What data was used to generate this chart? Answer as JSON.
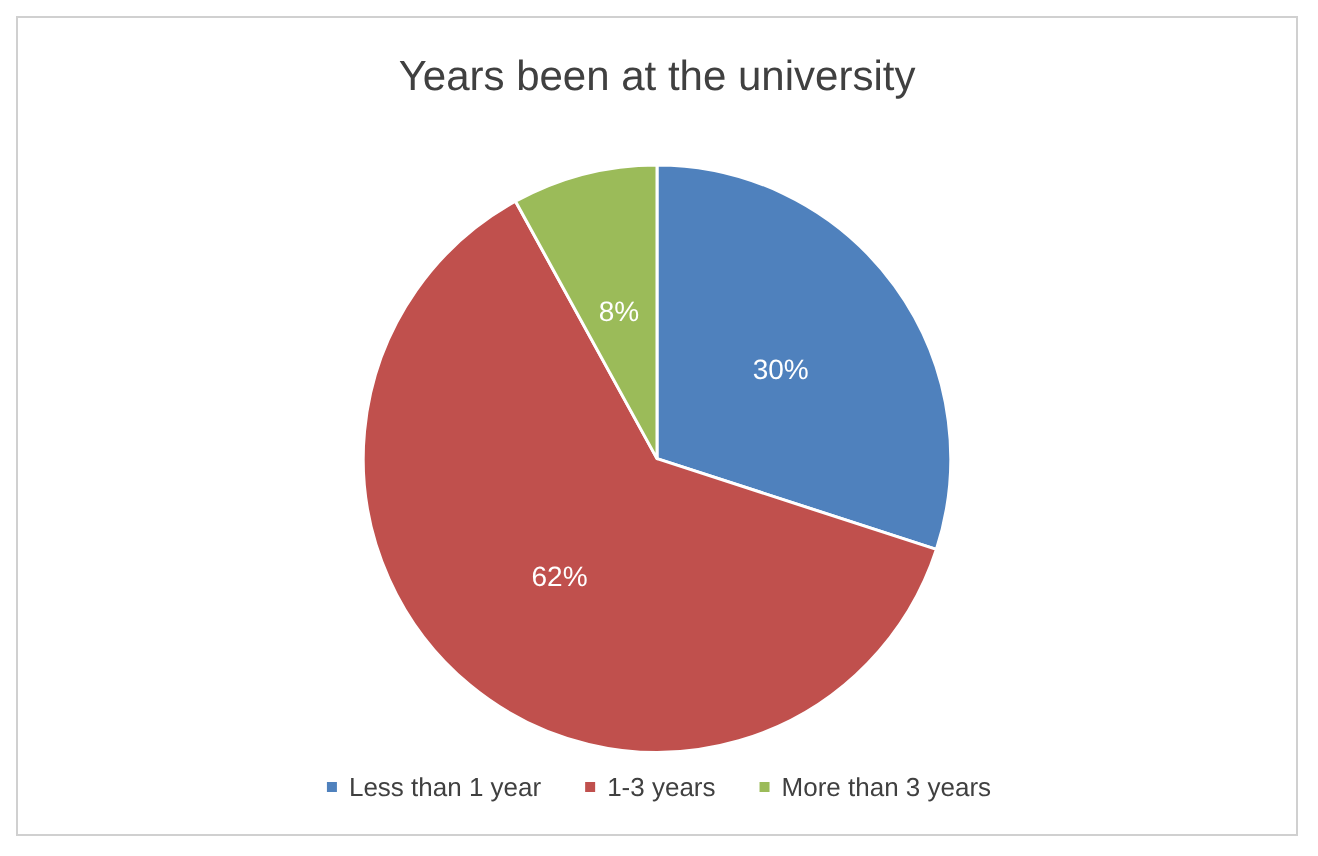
{
  "chart_data": {
    "type": "pie",
    "title": "Years been at the university",
    "categories": [
      "Less than 1 year",
      "1-3 years",
      "More than 3 years"
    ],
    "values": [
      30,
      62,
      8
    ],
    "colors": [
      "#4f81bd",
      "#c0504d",
      "#9bbb59"
    ],
    "value_labels": [
      "30%",
      "62%",
      "8%"
    ],
    "legend": "bottom"
  }
}
